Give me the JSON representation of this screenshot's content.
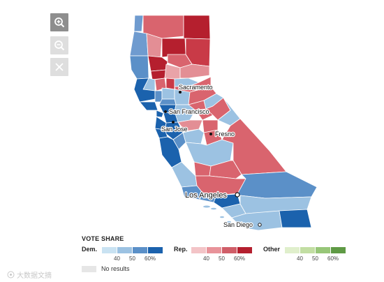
{
  "map_controls": {
    "zoom_in_icon": "zoom-in-icon",
    "zoom_out_icon": "zoom-out-icon",
    "close_icon": "close-icon"
  },
  "cities": {
    "sacramento": "Sacramento",
    "san_francisco": "San Francisco",
    "san_jose": "San Jose",
    "fresno": "Fresno",
    "los_angeles": "Los Angeles",
    "san_diego": "San Diego"
  },
  "legend": {
    "title": "VOTE SHARE",
    "dem": {
      "label": "Dem.",
      "ticks": [
        "40",
        "50",
        "60%"
      ],
      "colors": [
        "#c9e2f2",
        "#9cc2e2",
        "#5b90c8",
        "#1b62ad"
      ]
    },
    "rep": {
      "label": "Rep.",
      "ticks": [
        "40",
        "50",
        "60%"
      ],
      "colors": [
        "#f3c4c7",
        "#e8939a",
        "#d05e68",
        "#b41f2e"
      ]
    },
    "other": {
      "label": "Other",
      "ticks": [
        "40",
        "50",
        "60%"
      ],
      "colors": [
        "#e0efcc",
        "#c2dea3",
        "#97c678",
        "#5f9a45"
      ]
    },
    "no_results": "No results"
  },
  "watermark": "大数据文摘"
}
